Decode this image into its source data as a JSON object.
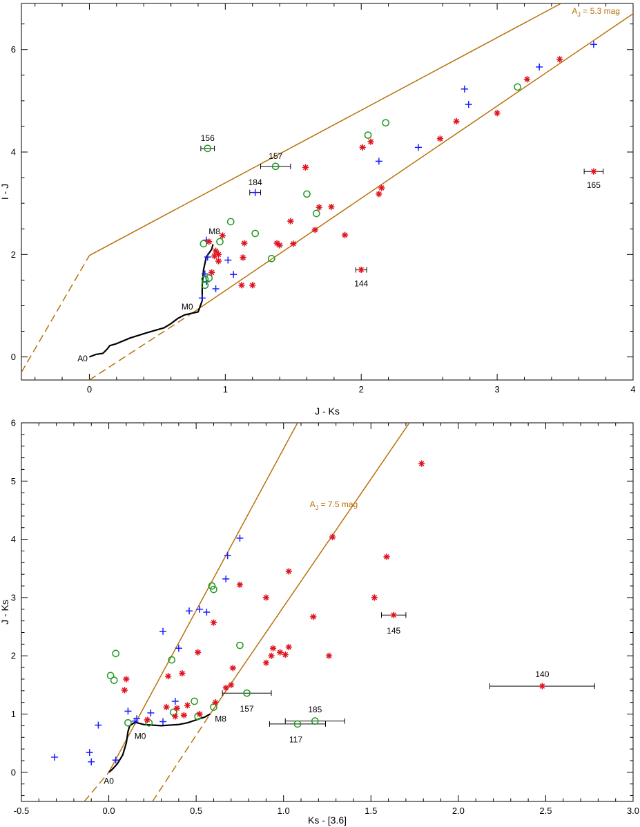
{
  "colors": {
    "main_sequence": "#000000",
    "reddening": "#b8700a",
    "plus_series": "#1a1aff",
    "circle_series": "#1f9a1f",
    "star_series": "#e0141e",
    "errorbar": "#000000"
  },
  "chart_data": [
    {
      "type": "scatter",
      "xlabel": "J - Ks",
      "ylabel": "I - J",
      "xlim": [
        -0.5,
        4.0
      ],
      "ylim": [
        -0.45,
        6.9
      ],
      "xticks": [
        0,
        1,
        2,
        3,
        4
      ],
      "xtick_labels": [
        "0",
        "1",
        "2",
        "3",
        "4"
      ],
      "yticks": [
        0,
        2,
        4,
        6
      ],
      "ytick_labels": [
        "0",
        "2",
        "4",
        "6"
      ],
      "grid": false,
      "extinction_label": {
        "text_main": "A",
        "text_sub": "J",
        "text_rest": " = 5.3 mag",
        "x": 3.55,
        "y": 6.7
      },
      "main_sequence": [
        [
          0,
          0
        ],
        [
          0.05,
          0.05
        ],
        [
          0.1,
          0.07
        ],
        [
          0.13,
          0.15
        ],
        [
          0.15,
          0.22
        ],
        [
          0.2,
          0.26
        ],
        [
          0.3,
          0.37
        ],
        [
          0.42,
          0.47
        ],
        [
          0.55,
          0.57
        ],
        [
          0.6,
          0.65
        ],
        [
          0.65,
          0.75
        ],
        [
          0.7,
          0.82
        ],
        [
          0.75,
          0.85
        ],
        [
          0.8,
          0.88
        ],
        [
          0.83,
          1.1
        ],
        [
          0.83,
          1.4
        ],
        [
          0.84,
          1.7
        ],
        [
          0.86,
          1.95
        ],
        [
          0.9,
          2.1
        ],
        [
          0.91,
          2.2
        ]
      ],
      "ms_labels": [
        {
          "text": "A0",
          "x": -0.05,
          "y": -0.03
        },
        {
          "text": "M0",
          "x": 0.72,
          "y": 0.98
        },
        {
          "text": "M8",
          "x": 0.92,
          "y": 2.45
        }
      ],
      "reddening_lines": [
        {
          "dashed": [
            [
              -0.5,
              -0.3
            ],
            [
              0.0,
              1.98
            ]
          ],
          "solid": [
            [
              0.0,
              1.98
            ],
            [
              3.47,
              6.9
            ]
          ]
        },
        {
          "dashed": [
            [
              0.0,
              -0.45
            ],
            [
              0.77,
              0.88
            ]
          ],
          "solid": [
            [
              0.77,
              0.88
            ],
            [
              4.0,
              6.7
            ]
          ]
        }
      ],
      "series": [
        {
          "marker": "plus",
          "points": [
            [
              0.86,
              2.28
            ],
            [
              0.87,
              1.95
            ],
            [
              0.85,
              1.62
            ],
            [
              0.86,
              1.47
            ],
            [
              0.83,
              1.15
            ],
            [
              0.93,
              1.33
            ],
            [
              1.02,
              1.89
            ],
            [
              1.06,
              1.61
            ],
            [
              1.22,
              3.21
            ],
            [
              2.13,
              3.82
            ],
            [
              2.42,
              4.09
            ],
            [
              2.76,
              5.23
            ],
            [
              2.79,
              4.93
            ],
            [
              3.31,
              5.66
            ],
            [
              3.71,
              6.1
            ]
          ]
        },
        {
          "marker": "circle",
          "points": [
            [
              0.87,
              4.07
            ],
            [
              1.37,
              3.72
            ],
            [
              0.84,
              2.21
            ],
            [
              0.96,
              2.25
            ],
            [
              1.04,
              2.64
            ],
            [
              1.22,
              2.41
            ],
            [
              1.34,
              1.92
            ],
            [
              1.6,
              3.18
            ],
            [
              1.67,
              2.8
            ],
            [
              2.05,
              4.33
            ],
            [
              2.18,
              4.57
            ],
            [
              3.15,
              5.27
            ],
            [
              0.85,
              1.52
            ],
            [
              0.88,
              1.54
            ],
            [
              0.85,
              1.4
            ]
          ]
        },
        {
          "marker": "star",
          "points": [
            [
              0.88,
              2.25
            ],
            [
              0.98,
              2.37
            ],
            [
              0.93,
              2.07
            ],
            [
              0.95,
              2.0
            ],
            [
              0.92,
              1.97
            ],
            [
              0.95,
              1.87
            ],
            [
              0.9,
              1.65
            ],
            [
              1.14,
              2.22
            ],
            [
              1.13,
              1.94
            ],
            [
              1.12,
              1.4
            ],
            [
              1.2,
              1.4
            ],
            [
              1.38,
              2.22
            ],
            [
              1.4,
              2.18
            ],
            [
              1.48,
              2.65
            ],
            [
              1.5,
              2.21
            ],
            [
              1.59,
              3.7
            ],
            [
              1.66,
              2.48
            ],
            [
              1.69,
              2.92
            ],
            [
              1.78,
              2.93
            ],
            [
              1.88,
              2.38
            ],
            [
              2.0,
              1.7
            ],
            [
              2.01,
              4.09
            ],
            [
              2.07,
              4.2
            ],
            [
              2.13,
              3.18
            ],
            [
              2.15,
              3.3
            ],
            [
              2.58,
              4.26
            ],
            [
              2.7,
              4.6
            ],
            [
              3.0,
              4.76
            ],
            [
              3.22,
              5.42
            ],
            [
              3.46,
              5.81
            ],
            [
              3.71,
              3.62
            ]
          ]
        }
      ],
      "error_bars": [
        {
          "x": 0.87,
          "y": 4.07,
          "xerr": 0.05,
          "label": "156",
          "label_dx": 0.0,
          "label_dy": 0.2
        },
        {
          "x": 1.37,
          "y": 3.72,
          "xerr": 0.11,
          "label": "157",
          "label_dx": 0.0,
          "label_dy": 0.2
        },
        {
          "x": 1.22,
          "y": 3.21,
          "xerr": 0.04,
          "label": "184",
          "label_dx": 0.0,
          "label_dy": 0.2
        },
        {
          "x": 2.0,
          "y": 1.7,
          "xerr": 0.04,
          "label": "144",
          "label_dx": 0.0,
          "label_dy": -0.27
        },
        {
          "x": 3.71,
          "y": 3.62,
          "xerr": 0.07,
          "label": "165",
          "label_dx": 0.0,
          "label_dy": -0.27
        }
      ]
    },
    {
      "type": "scatter",
      "xlabel": "Ks - [3.6]",
      "ylabel": "J - Ks",
      "xlim": [
        -0.5,
        3.0
      ],
      "ylim": [
        -0.5,
        6.0
      ],
      "xticks": [
        -0.5,
        0.0,
        0.5,
        1.0,
        1.5,
        2.0,
        2.5,
        3.0
      ],
      "xtick_labels": [
        "-0.5",
        "0.0",
        "0.5",
        "1.0",
        "1.5",
        "2.0",
        "2.5",
        "3.0"
      ],
      "yticks": [
        0,
        1,
        2,
        3,
        4,
        5,
        6
      ],
      "ytick_labels": [
        "0",
        "1",
        "2",
        "3",
        "4",
        "5",
        "6"
      ],
      "grid": false,
      "extinction_label": {
        "text_main": "A",
        "text_sub": "J",
        "text_rest": " = 7.5 mag",
        "x": 1.15,
        "y": 4.55
      },
      "main_sequence": [
        [
          0.0,
          0.0
        ],
        [
          0.02,
          0.05
        ],
        [
          0.05,
          0.15
        ],
        [
          0.08,
          0.3
        ],
        [
          0.1,
          0.5
        ],
        [
          0.11,
          0.7
        ],
        [
          0.12,
          0.8
        ],
        [
          0.15,
          0.86
        ],
        [
          0.2,
          0.82
        ],
        [
          0.3,
          0.8
        ],
        [
          0.4,
          0.82
        ],
        [
          0.45,
          0.85
        ],
        [
          0.5,
          0.9
        ],
        [
          0.55,
          0.95
        ],
        [
          0.58,
          1.0
        ]
      ],
      "ms_labels": [
        {
          "text": "A0",
          "x": 0.0,
          "y": -0.15
        },
        {
          "text": "M0",
          "x": 0.18,
          "y": 0.62
        },
        {
          "text": "M8",
          "x": 0.64,
          "y": 0.92
        }
      ],
      "reddening_lines": [
        {
          "dashed": [
            [
              -0.14,
              -0.5
            ],
            [
              0.0,
              0.0
            ]
          ],
          "solid": [
            [
              0.0,
              0.0
            ],
            [
              1.08,
              6.0
            ]
          ]
        },
        {
          "dashed": [
            [
              0.25,
              -0.5
            ],
            [
              0.58,
              1.0
            ]
          ],
          "solid": [
            [
              0.58,
              1.0
            ],
            [
              1.72,
              6.0
            ]
          ]
        }
      ],
      "series": [
        {
          "marker": "plus",
          "points": [
            [
              -0.31,
              0.26
            ],
            [
              -0.11,
              0.34
            ],
            [
              -0.1,
              0.18
            ],
            [
              -0.06,
              0.81
            ],
            [
              0.04,
              0.21
            ],
            [
              0.11,
              1.05
            ],
            [
              0.15,
              0.88
            ],
            [
              0.16,
              0.92
            ],
            [
              0.24,
              1.02
            ],
            [
              0.31,
              0.87
            ],
            [
              0.31,
              2.42
            ],
            [
              0.38,
              1.22
            ],
            [
              0.4,
              2.13
            ],
            [
              0.46,
              2.77
            ],
            [
              0.52,
              2.8
            ],
            [
              0.56,
              2.75
            ],
            [
              0.67,
              3.32
            ],
            [
              0.68,
              3.72
            ],
            [
              0.75,
              4.02
            ]
          ]
        },
        {
          "marker": "circle",
          "points": [
            [
              0.01,
              1.66
            ],
            [
              0.03,
              1.58
            ],
            [
              0.04,
              2.04
            ],
            [
              0.11,
              0.85
            ],
            [
              0.23,
              0.85
            ],
            [
              0.36,
              1.93
            ],
            [
              0.37,
              1.03
            ],
            [
              0.49,
              1.22
            ],
            [
              0.51,
              0.96
            ],
            [
              0.59,
              3.2
            ],
            [
              0.6,
              3.14
            ],
            [
              0.6,
              1.12
            ],
            [
              0.75,
              2.18
            ],
            [
              0.79,
              1.36
            ],
            [
              1.08,
              0.83
            ],
            [
              1.18,
              0.88
            ]
          ]
        },
        {
          "marker": "star",
          "points": [
            [
              0.09,
              1.41
            ],
            [
              0.1,
              1.6
            ],
            [
              0.22,
              0.9
            ],
            [
              0.33,
              1.12
            ],
            [
              0.34,
              1.65
            ],
            [
              0.38,
              0.96
            ],
            [
              0.39,
              1.1
            ],
            [
              0.42,
              1.7
            ],
            [
              0.43,
              0.98
            ],
            [
              0.45,
              1.15
            ],
            [
              0.51,
              2.06
            ],
            [
              0.52,
              1.0
            ],
            [
              0.6,
              2.57
            ],
            [
              0.61,
              1.2
            ],
            [
              0.67,
              1.45
            ],
            [
              0.7,
              1.5
            ],
            [
              0.71,
              1.79
            ],
            [
              0.75,
              3.22
            ],
            [
              0.9,
              3.0
            ],
            [
              0.9,
              1.88
            ],
            [
              0.93,
              2.0
            ],
            [
              0.94,
              2.13
            ],
            [
              0.98,
              2.06
            ],
            [
              1.01,
              2.02
            ],
            [
              1.03,
              2.15
            ],
            [
              1.03,
              3.45
            ],
            [
              1.17,
              2.67
            ],
            [
              1.26,
              2.0
            ],
            [
              1.28,
              4.04
            ],
            [
              1.52,
              3.0
            ],
            [
              1.59,
              3.7
            ],
            [
              1.63,
              2.7
            ],
            [
              1.79,
              5.3
            ],
            [
              2.48,
              1.48
            ]
          ]
        }
      ],
      "error_bars": [
        {
          "x": 0.79,
          "y": 1.36,
          "xerr": 0.14,
          "label": "157",
          "label_dx": 0.0,
          "label_dy": -0.27
        },
        {
          "x": 1.08,
          "y": 0.83,
          "xerr": 0.16,
          "label": "117",
          "label_dx": -0.01,
          "label_dy": -0.27
        },
        {
          "x": 1.18,
          "y": 0.88,
          "xerr": 0.17,
          "label": "185",
          "label_dx": 0.0,
          "label_dy": 0.2
        },
        {
          "x": 1.63,
          "y": 2.7,
          "xerr": 0.07,
          "label": "145",
          "label_dx": 0.0,
          "label_dy": -0.27
        },
        {
          "x": 2.48,
          "y": 1.48,
          "xerr": 0.3,
          "label": "140",
          "label_dx": 0.0,
          "label_dy": 0.2
        }
      ]
    }
  ]
}
